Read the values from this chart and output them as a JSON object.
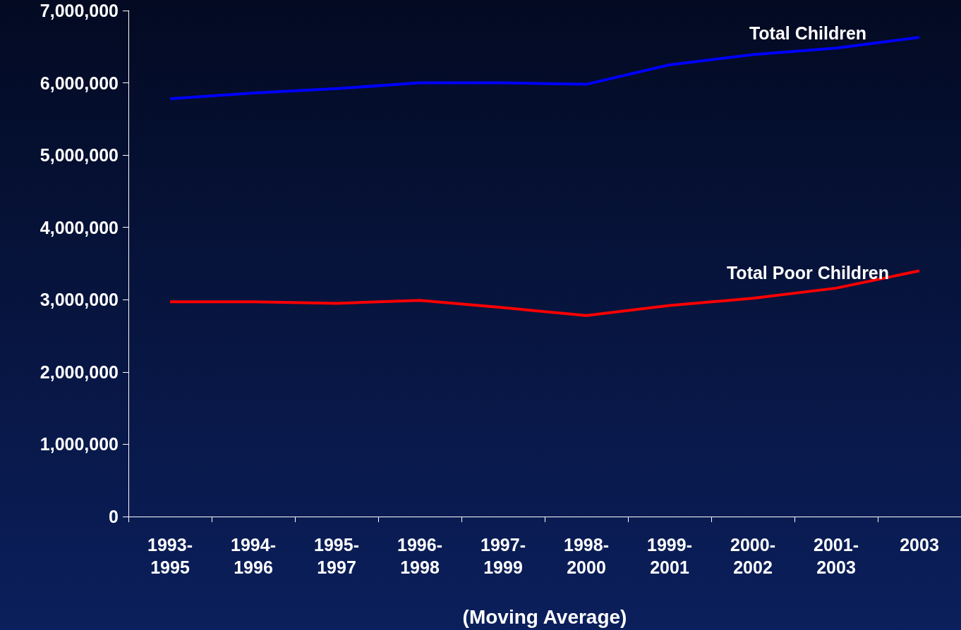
{
  "chart_data": {
    "type": "line",
    "xlabel": "(Moving Average)",
    "categories": [
      "1993-1995",
      "1994-1996",
      "1995-1997",
      "1996-1998",
      "1997-1999",
      "1998-2000",
      "1999-2001",
      "2000-2002",
      "2001-2003",
      "2003"
    ],
    "series": [
      {
        "name": "Total Children",
        "color": "#0000ff",
        "values": [
          5780000,
          5860000,
          5920000,
          6000000,
          6000000,
          5980000,
          6250000,
          6390000,
          6480000,
          6630000
        ]
      },
      {
        "name": "Total Poor Children",
        "color": "#ff0000",
        "values": [
          2970000,
          2970000,
          2950000,
          2990000,
          2890000,
          2780000,
          2920000,
          3020000,
          3160000,
          3400000
        ]
      }
    ],
    "ylim": [
      0,
      7000000
    ],
    "yticks": [
      0,
      {
        "value": 1000000,
        "label": "1,000,000"
      },
      {
        "value": 2000000,
        "label": "2,000,000"
      },
      {
        "value": 3000000,
        "label": "3,000,000"
      },
      {
        "value": 4000000,
        "label": "4,000,000"
      },
      {
        "value": 5000000,
        "label": "5,000,000"
      },
      {
        "value": 6000000,
        "label": "6,000,000"
      },
      {
        "value": 7000000,
        "label": "7,000,000"
      }
    ],
    "grid": false,
    "legend": false,
    "marker": "none",
    "line_style": "solid"
  }
}
